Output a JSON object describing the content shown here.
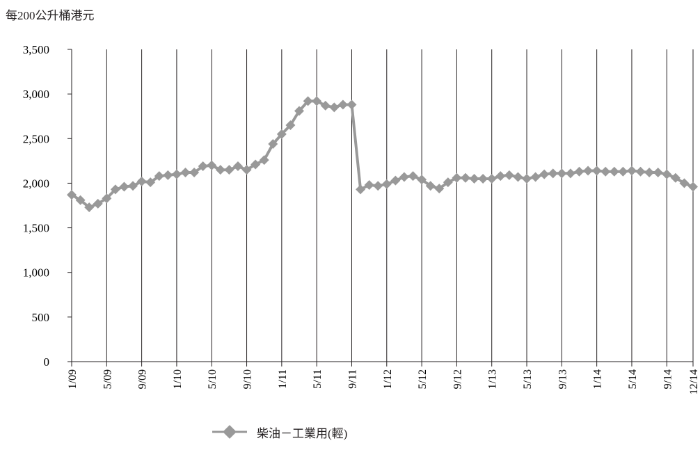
{
  "chart_data": {
    "type": "line",
    "unit_label": "每200公升桶港元",
    "ylim": [
      0,
      3500
    ],
    "y_ticks": [
      "0",
      "500",
      "1,000",
      "1,500",
      "2,000",
      "2,500",
      "3,000",
      "3,500"
    ],
    "x_ticks": [
      "1/09",
      "5/09",
      "9/09",
      "1/10",
      "5/10",
      "9/10",
      "1/11",
      "5/11",
      "9/11",
      "1/12",
      "5/12",
      "9/12",
      "1/13",
      "5/13",
      "9/13",
      "1/14",
      "5/14",
      "9/14",
      "12/14"
    ],
    "grid": "vertical",
    "legend_position": "bottom",
    "series": [
      {
        "name": "柴油－工業用(輕)",
        "color": "#999999",
        "x": [
          "1/09",
          "2/09",
          "3/09",
          "4/09",
          "5/09",
          "6/09",
          "7/09",
          "8/09",
          "9/09",
          "10/09",
          "11/09",
          "12/09",
          "1/10",
          "2/10",
          "3/10",
          "4/10",
          "5/10",
          "6/10",
          "7/10",
          "8/10",
          "9/10",
          "10/10",
          "11/10",
          "12/10",
          "1/11",
          "2/11",
          "3/11",
          "4/11",
          "5/11",
          "6/11",
          "7/11",
          "8/11",
          "9/11",
          "10/11",
          "11/11",
          "12/11",
          "1/12",
          "2/12",
          "3/12",
          "4/12",
          "5/12",
          "6/12",
          "7/12",
          "8/12",
          "9/12",
          "10/12",
          "11/12",
          "12/12",
          "1/13",
          "2/13",
          "3/13",
          "4/13",
          "5/13",
          "6/13",
          "7/13",
          "8/13",
          "9/13",
          "10/13",
          "11/13",
          "12/13",
          "1/14",
          "2/14",
          "3/14",
          "4/14",
          "5/14",
          "6/14",
          "7/14",
          "8/14",
          "9/14",
          "10/14",
          "11/14",
          "12/14"
        ],
        "values": [
          1870,
          1810,
          1730,
          1770,
          1830,
          1930,
          1960,
          1970,
          2020,
          2010,
          2080,
          2090,
          2100,
          2120,
          2120,
          2190,
          2200,
          2150,
          2150,
          2190,
          2150,
          2210,
          2260,
          2440,
          2550,
          2650,
          2810,
          2920,
          2920,
          2870,
          2850,
          2880,
          2880,
          1930,
          1980,
          1970,
          1990,
          2030,
          2070,
          2080,
          2040,
          1970,
          1940,
          2010,
          2060,
          2060,
          2050,
          2050,
          2050,
          2080,
          2090,
          2070,
          2050,
          2070,
          2100,
          2110,
          2110,
          2110,
          2130,
          2140,
          2140,
          2130,
          2130,
          2130,
          2140,
          2130,
          2120,
          2120,
          2100,
          2060,
          2000,
          1960
        ]
      }
    ]
  }
}
